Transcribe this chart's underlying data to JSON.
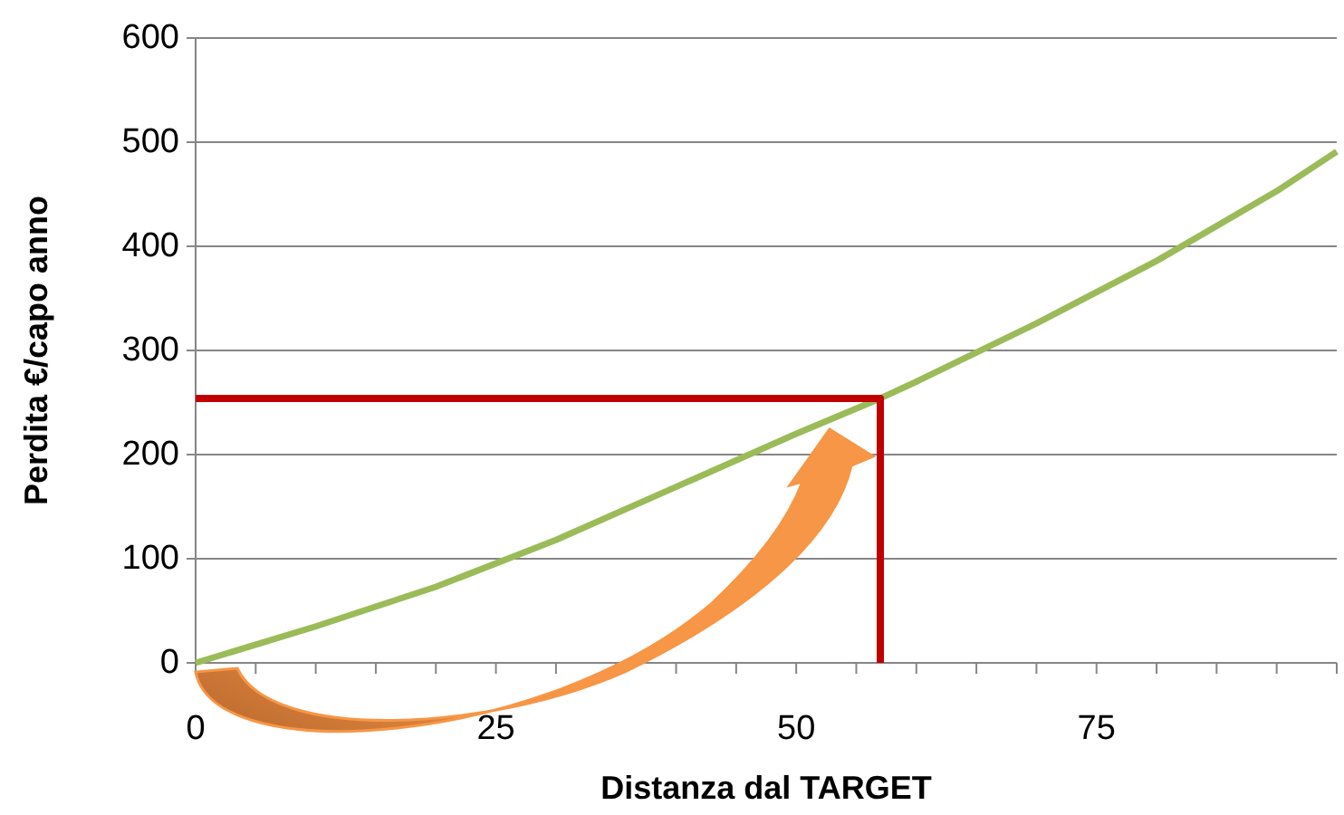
{
  "chart_data": {
    "type": "line",
    "xlabel": "Distanza dal TARGET",
    "ylabel": "Perdita €/capo anno",
    "xlim": [
      0,
      95
    ],
    "ylim": [
      0,
      600
    ],
    "xticks": [
      0,
      {
        "value": 5,
        "label": null
      },
      {
        "value": 10,
        "label": null
      },
      {
        "value": 15,
        "label": null
      },
      {
        "value": 20,
        "label": null
      },
      25,
      {
        "value": 30,
        "label": null
      },
      {
        "value": 35,
        "label": null
      },
      {
        "value": 40,
        "label": null
      },
      {
        "value": 45,
        "label": null
      },
      50,
      {
        "value": 55,
        "label": null
      },
      {
        "value": 60,
        "label": null
      },
      {
        "value": 65,
        "label": null
      },
      {
        "value": 70,
        "label": null
      },
      75,
      {
        "value": 80,
        "label": null
      },
      {
        "value": 85,
        "label": null
      },
      {
        "value": 90,
        "label": null
      },
      {
        "value": 95,
        "label": null
      }
    ],
    "yticks": [
      0,
      100,
      200,
      300,
      400,
      500,
      600
    ],
    "grid": "y",
    "marker": "none",
    "line_style": "solid",
    "series": [
      {
        "color": "#9bbb59",
        "x": [
          0,
          10,
          20,
          30,
          40,
          50,
          57,
          60,
          70,
          80,
          90,
          95
        ],
        "values": [
          0,
          35,
          73,
          118,
          169,
          220,
          254,
          270,
          326,
          386,
          453,
          491
        ]
      },
      {
        "color": "#c00000",
        "x": [
          0,
          57,
          57
        ],
        "values": [
          254,
          254,
          0
        ]
      }
    ]
  }
}
